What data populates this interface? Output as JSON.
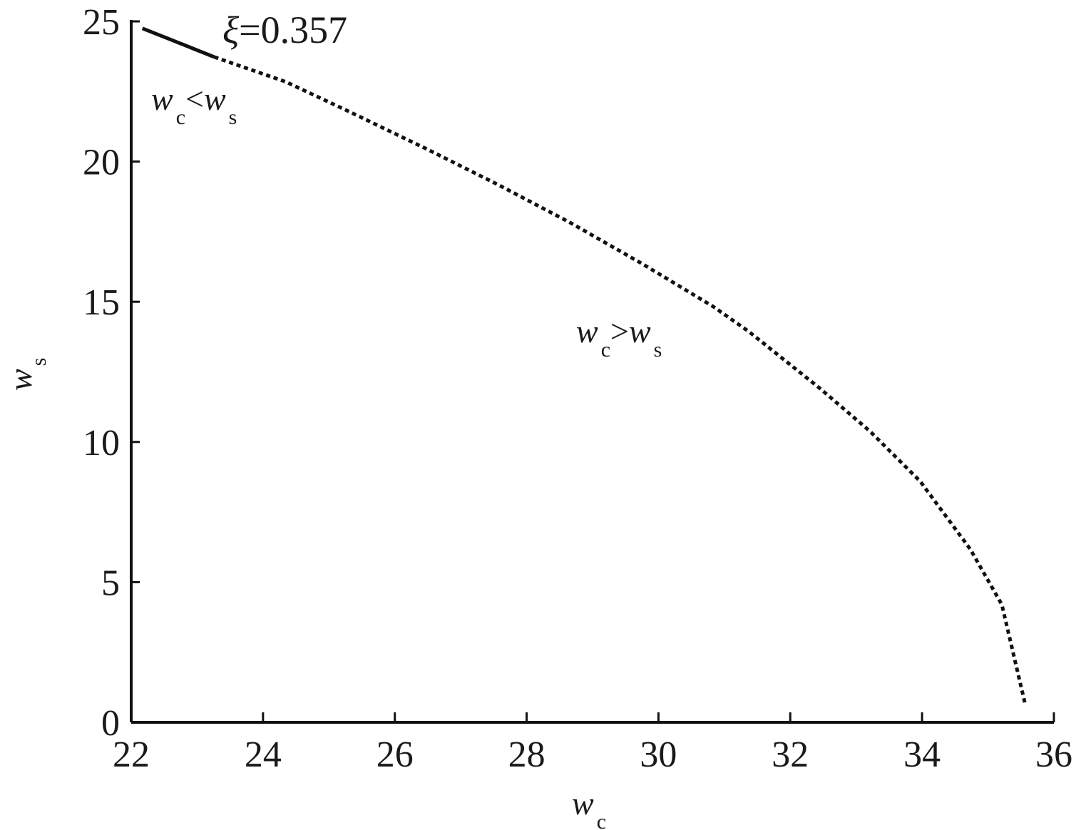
{
  "chart_data": {
    "type": "line",
    "x_label": {
      "main": "w",
      "sub": "c"
    },
    "y_label": {
      "main": "w",
      "sub": "s"
    },
    "annotations": [
      {
        "parts": [
          "ξ",
          "=0.357"
        ],
        "sub": [
          false,
          false
        ]
      },
      {
        "parts": [
          "w",
          "c",
          "<",
          "w",
          "s"
        ],
        "sub": [
          false,
          true,
          false,
          false,
          true
        ]
      },
      {
        "parts": [
          "w",
          "c",
          ">",
          "w",
          "s"
        ],
        "sub": [
          false,
          true,
          false,
          false,
          true
        ]
      }
    ],
    "series": [
      {
        "color": "#111111",
        "dash": "solid",
        "x": [
          22.17,
          22.6,
          22.93,
          23.26
        ],
        "values": [
          24.75,
          24.35,
          24.04,
          23.73
        ]
      },
      {
        "color": "#111111",
        "dash": "dotted",
        "x": [
          23.26,
          24.34,
          25.31,
          26.5,
          27.58,
          28.67,
          29.75,
          30.83,
          31.37,
          32.45,
          33.21,
          33.97,
          34.73,
          35.21,
          35.57
        ],
        "values": [
          23.73,
          22.85,
          21.78,
          20.43,
          19.16,
          17.81,
          16.36,
          14.83,
          13.94,
          11.91,
          10.38,
          8.6,
          6.18,
          4.2,
          0.59
        ]
      }
    ],
    "xlim": [
      22,
      36
    ],
    "xticks": [
      22,
      24,
      26,
      28,
      30,
      32,
      34,
      36
    ],
    "ylim": [
      0,
      25
    ],
    "yticks": [
      0,
      5,
      10,
      15,
      20,
      25
    ]
  }
}
